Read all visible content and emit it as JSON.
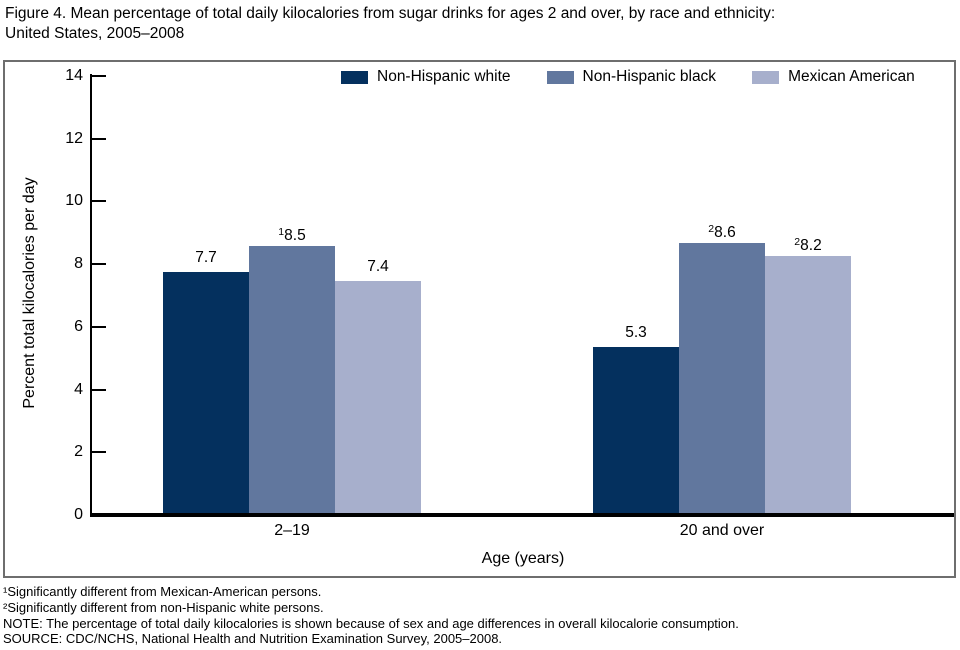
{
  "figure": {
    "title_line1": "Figure 4. Mean percentage of total daily kilocalories from sugar drinks for ages 2 and over, by race and ethnicity:",
    "title_line2": "United States, 2005–2008"
  },
  "chart_data": {
    "type": "bar",
    "title": "Figure 4. Mean percentage of total daily kilocalories from sugar drinks for ages 2 and over, by race and ethnicity: United States, 2005–2008",
    "categories": [
      "2–19",
      "20 and over"
    ],
    "series": [
      {
        "name": "Non-Hispanic white",
        "color": "#04305E",
        "values": [
          7.7,
          5.3
        ],
        "labels": [
          "7.7",
          "5.3"
        ],
        "label_sups": [
          "",
          ""
        ]
      },
      {
        "name": "Non-Hispanic black",
        "color": "#61779E",
        "values": [
          8.5,
          8.6
        ],
        "labels": [
          "8.5",
          "8.6"
        ],
        "label_sups": [
          "1",
          "2"
        ]
      },
      {
        "name": "Mexican American",
        "color": "#A7AFCC",
        "values": [
          7.4,
          8.2
        ],
        "labels": [
          "7.4",
          "8.2"
        ],
        "label_sups": [
          "",
          "2"
        ]
      }
    ],
    "xlabel": "Age (years)",
    "ylabel": "Percent total kilocalories per day",
    "ylim": [
      0,
      14
    ],
    "yticks": [
      0,
      2,
      4,
      6,
      8,
      10,
      12,
      14
    ],
    "grid": false,
    "legend_position": "top-inside",
    "axis_color": "#000000",
    "frame_color": "#6e6e6e"
  },
  "footnotes": {
    "line1": "¹Significantly different from Mexican-American persons.",
    "line2": "²Significantly different from non-Hispanic white persons.",
    "line3": "NOTE: The percentage of total daily kilocalories is shown because of sex and age differences in overall kilocalorie consumption.",
    "line4": "SOURCE: CDC/NCHS, National Health and Nutrition Examination Survey, 2005–2008."
  }
}
